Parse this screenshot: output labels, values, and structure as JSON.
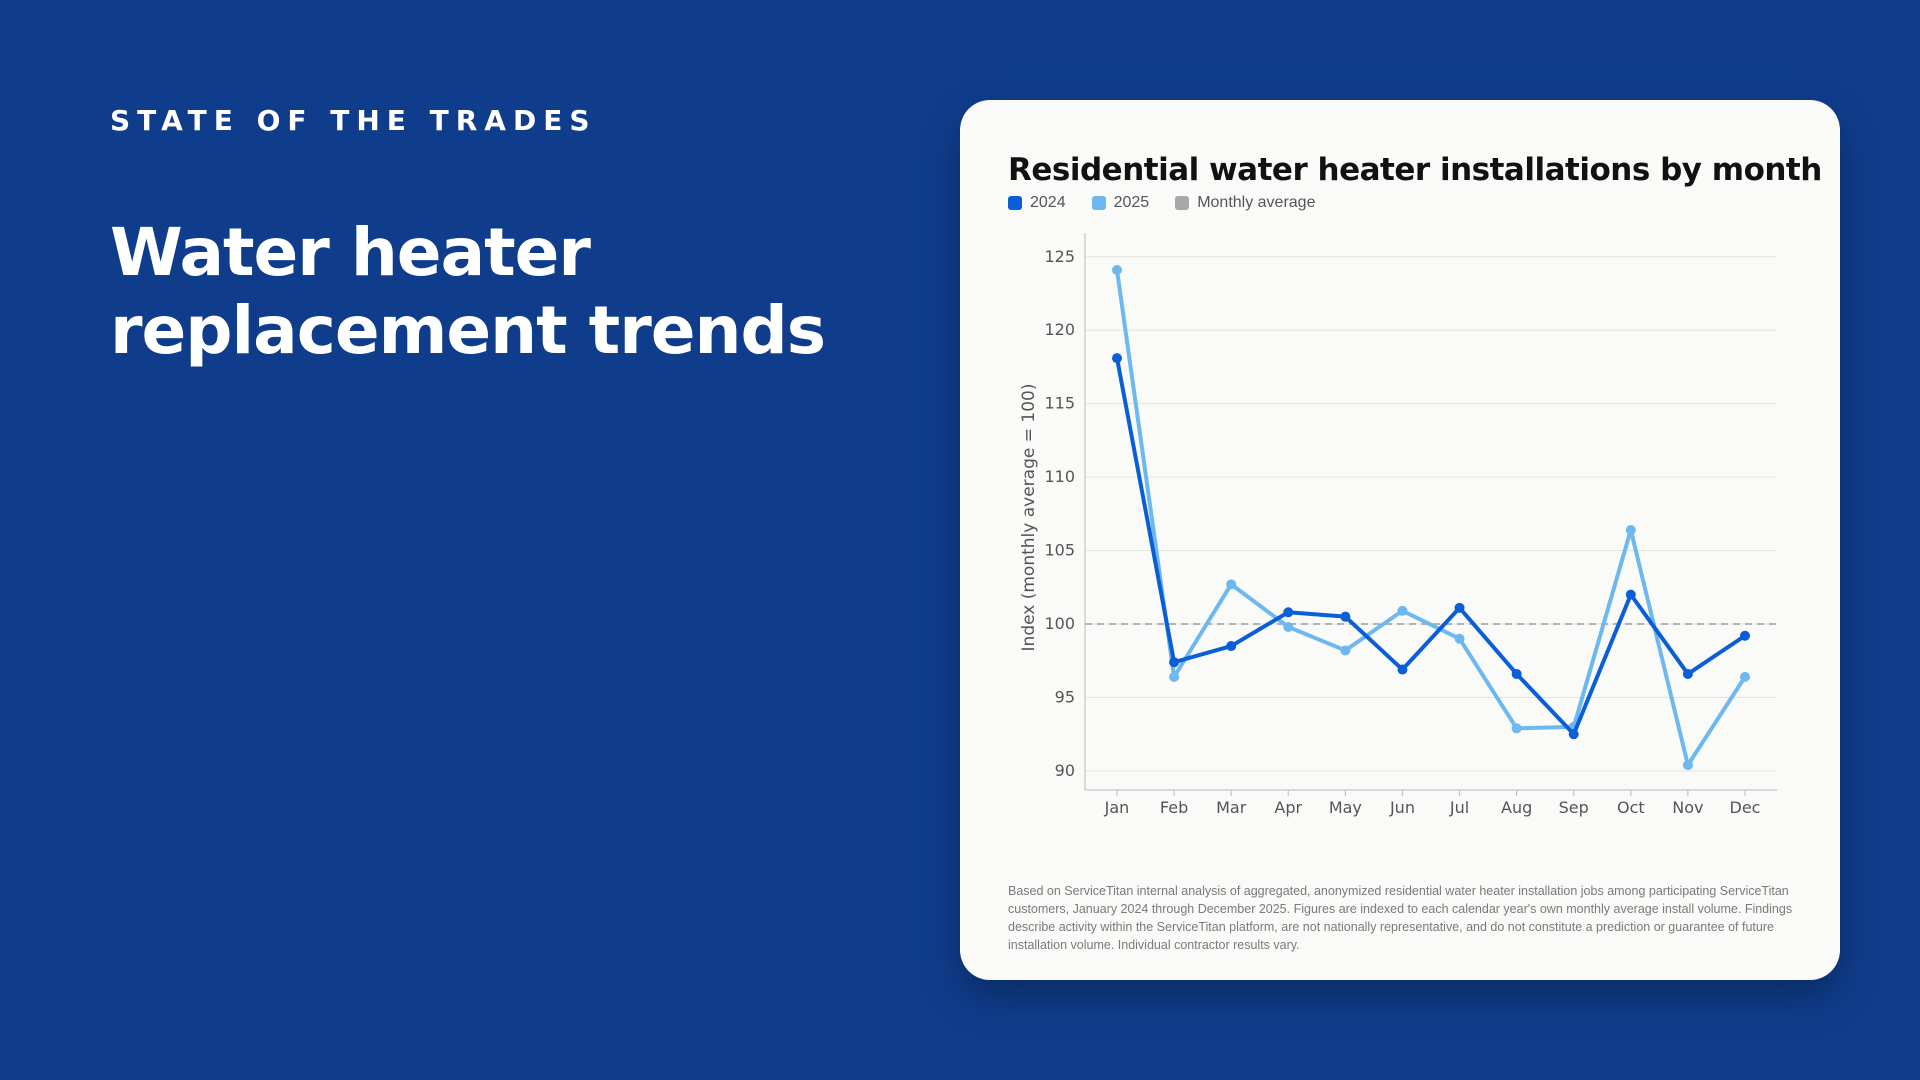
{
  "header": {
    "eyebrow": "STATE OF THE TRADES",
    "headline": "Water heater replacement trends"
  },
  "colors": {
    "background": "#0f3d8c",
    "card": "#fafaf8",
    "series_2024": "#0a5fd6",
    "series_2025": "#6db8f0",
    "average": "#a8a8a8"
  },
  "chart_data": {
    "type": "line",
    "title": "Residential water heater installations by month",
    "xlabel": "",
    "ylabel": "Index (monthly average = 100)",
    "categories": [
      "Jan",
      "Feb",
      "Mar",
      "Apr",
      "May",
      "Jun",
      "Jul",
      "Aug",
      "Sep",
      "Oct",
      "Nov",
      "Dec"
    ],
    "yticks": [
      90,
      95,
      100,
      105,
      110,
      115,
      120,
      125
    ],
    "ylim": [
      88.7,
      125.8
    ],
    "grid": true,
    "legend_position": "top-left",
    "series": [
      {
        "name": "2024",
        "color": "#0a5fd6",
        "values": [
          118.1,
          97.4,
          98.5,
          100.8,
          100.5,
          96.9,
          101.1,
          96.6,
          92.5,
          102.0,
          96.6,
          99.2
        ]
      },
      {
        "name": "2025",
        "color": "#6db8f0",
        "values": [
          124.1,
          96.4,
          102.7,
          99.8,
          98.2,
          100.9,
          99.0,
          92.9,
          93.0,
          106.4,
          90.4,
          96.4
        ]
      }
    ],
    "reference_line": {
      "name": "Monthly average",
      "value": 100,
      "color": "#a8a8a8",
      "style": "dashed"
    }
  },
  "footnote": "Based on ServiceTitan internal analysis of aggregated, anonymized residential water heater installation jobs among participating ServiceTitan customers, January 2024 through December 2025. Figures are indexed to each calendar year's own monthly average install volume. Findings describe activity within the ServiceTitan platform, are not nationally representative, and do not constitute a prediction or guarantee of future installation volume. Individual contractor results vary."
}
